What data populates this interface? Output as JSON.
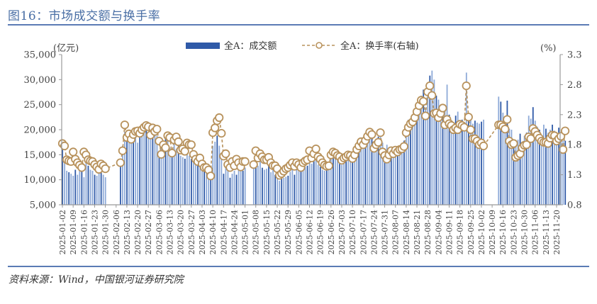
{
  "header": {
    "title": "图16：市场成交额与换手率"
  },
  "footer": {
    "source": "资料来源：Wind，中国银河证券研究院"
  },
  "colors": {
    "bar_dark": "#2f5aa8",
    "bar_light": "#8eaad8",
    "line": "#b8925c",
    "title": "#4a6fa5",
    "rule": "#5b7bb5",
    "axis": "#999999"
  },
  "chart_data": {
    "type": "bar+line",
    "title": "市场成交额与换手率",
    "left_axis": {
      "unit_label": "(亿元)",
      "min": 5000,
      "max": 35000,
      "ticks": [
        "5,000",
        "10,000",
        "15,000",
        "20,000",
        "25,000",
        "30,000",
        "35,000"
      ]
    },
    "right_axis": {
      "unit_label": "(%)",
      "min": 0.8,
      "max": 3.3,
      "ticks": [
        "0.8",
        "1.3",
        "1.8",
        "2.3",
        "2.8",
        "3.3"
      ]
    },
    "legend": [
      {
        "name": "全A：成交额",
        "type": "bar"
      },
      {
        "name": "全A：换手率(右轴)",
        "type": "line-dashed-marker"
      }
    ],
    "x_tick_labels": [
      "2025-01-02",
      "2025-01-09",
      "2025-01-16",
      "2025-01-23",
      "2025-01-30",
      "2025-02-06",
      "2025-02-13",
      "2025-02-20",
      "2025-02-27",
      "2025-03-06",
      "2025-03-13",
      "2025-03-20",
      "2025-03-27",
      "2025-04-03",
      "2025-04-10",
      "2025-04-17",
      "2025-04-24",
      "2025-05-01",
      "2025-05-08",
      "2025-05-15",
      "2025-05-22",
      "2025-05-29",
      "2025-06-05",
      "2025-06-12",
      "2025-06-19",
      "2025-06-26",
      "2025-07-03",
      "2025-07-10",
      "2025-07-17",
      "2025-07-24",
      "2025-07-31",
      "2025-08-07",
      "2025-08-14",
      "2025-08-21",
      "2025-08-28",
      "2025-09-04",
      "2025-09-11",
      "2025-09-18",
      "2025-09-25",
      "2025-10-02",
      "2025-10-09",
      "2025-10-16",
      "2025-10-23",
      "2025-10-30",
      "2025-11-06",
      "2025-11-13",
      "2025-11-20"
    ],
    "series": [
      {
        "name": "全A：成交额",
        "unit": "亿元",
        "weekly_values": [
          [
            16500,
            14200,
            11800,
            11500,
            11200
          ],
          [
            10800,
            12000,
            11000,
            13500,
            11800
          ],
          [
            10500,
            13500,
            12800,
            12000,
            11800
          ],
          [
            11000,
            10800,
            13800,
            12200,
            11000
          ],
          [
            10500,
            null,
            null,
            null,
            null
          ],
          [
            null,
            null,
            12800,
            16800,
            19600
          ],
          [
            18500,
            17600,
            17500,
            19500,
            18800
          ],
          [
            17400,
            19800,
            20200,
            21000,
            21600
          ],
          [
            19200,
            18600,
            20500,
            19000,
            18800
          ],
          [
            15800,
            17000,
            16200,
            18600,
            18200
          ],
          [
            16400,
            15800,
            17400,
            16200,
            16800
          ],
          [
            14800,
            14500,
            14200,
            15200,
            14800
          ],
          [
            14200,
            13800,
            13200,
            13500,
            14800
          ],
          [
            12800,
            12200,
            11600,
            11800,
            12800
          ],
          [
            16800,
            17600,
            18800,
            16800,
            15200
          ],
          [
            11200,
            12600,
            11800,
            10400,
            11200
          ],
          [
            11800,
            11000,
            12000,
            12200,
            11800
          ],
          [
            12400,
            null,
            null,
            null,
            12600
          ],
          [
            14200,
            12800,
            13800,
            12400,
            12000
          ],
          [
            12200,
            12800,
            11500,
            12000,
            11000
          ],
          [
            10800,
            9800,
            10200,
            10400,
            10600
          ],
          [
            10800,
            11600,
            12000,
            11000,
            12200
          ],
          [
            12800,
            11800,
            12400,
            12600,
            12800
          ],
          [
            14600,
            13200,
            14000,
            15000,
            13000
          ],
          [
            12600,
            12000,
            11800,
            12400,
            12000
          ],
          [
            14600,
            16000,
            15800,
            14200,
            14800
          ],
          [
            13000,
            13600,
            14400,
            15800,
            15200
          ],
          [
            14000,
            15200,
            14800,
            15800,
            16400
          ],
          [
            16400,
            17600,
            18800,
            19800,
            19200
          ],
          [
            17200,
            18200,
            18600,
            19800,
            17400
          ],
          [
            16000,
            17000,
            15400,
            15600,
            16400
          ],
          [
            15600,
            16200,
            16800,
            17000,
            17800
          ],
          [
            21000,
            22000,
            20200,
            22600,
            21400
          ],
          [
            25200,
            24600,
            26800,
            28000,
            24400
          ],
          [
            28000,
            30800,
            31800,
            30000,
            26800
          ],
          [
            26000,
            22600,
            24800,
            24200,
            29000
          ],
          [
            23000,
            20800,
            19800,
            22800,
            23600
          ],
          [
            21800,
            22000,
            21000,
            31400,
            23200
          ],
          [
            22800,
            21200,
            21800,
            21400,
            21200
          ],
          [
            21600,
            22000,
            null,
            null,
            null
          ],
          [
            null,
            null,
            null,
            26600,
            25600
          ],
          [
            23400,
            22000,
            25800,
            20200,
            20000
          ],
          [
            17000,
            17600,
            18000,
            19200,
            17000
          ],
          [
            18800,
            19400,
            22800,
            22200,
            24500
          ],
          [
            21800,
            20600,
            20000,
            18800,
            21000
          ],
          [
            20200,
            19400,
            20000,
            21000,
            19800
          ],
          [
            18600,
            20400,
            19400,
            17800,
            17800
          ]
        ]
      },
      {
        "name": "全A：换手率(右轴)",
        "unit": "%",
        "weekly_values": [
          [
            1.82,
            1.78,
            1.55,
            1.53,
            1.52
          ],
          [
            1.68,
            1.56,
            1.5,
            1.46,
            1.42
          ],
          [
            1.68,
            1.63,
            1.55,
            1.53,
            1.52
          ],
          [
            1.47,
            1.43,
            1.39,
            1.48,
            1.45
          ],
          [
            1.4,
            null,
            null,
            null,
            null
          ],
          [
            null,
            null,
            1.5,
            1.7,
            2.13
          ],
          [
            1.92,
            1.98,
            1.89,
            1.97,
            2.02
          ],
          [
            2.03,
            1.99,
            2.05,
            2.09,
            2.12
          ],
          [
            2.1,
            1.96,
            2.08,
            2.02,
            2.06
          ],
          [
            1.86,
            1.64,
            1.8,
            1.75,
            1.95
          ],
          [
            1.92,
            1.66,
            1.88,
            1.93,
            1.85
          ],
          [
            1.71,
            1.73,
            1.69,
            1.83,
            1.8
          ],
          [
            1.8,
            1.64,
            1.56,
            1.52,
            1.58
          ],
          [
            1.48,
            1.42,
            1.42,
            1.38,
            1.28
          ],
          [
            2.0,
            2.08,
            2.2,
            2.25,
            1.99
          ],
          [
            1.61,
            1.65,
            1.47,
            1.42,
            1.52
          ],
          [
            1.45,
            1.56,
            1.5,
            1.43,
            1.52
          ],
          [
            1.52,
            null,
            null,
            null,
            1.47
          ],
          [
            1.7,
            1.58,
            1.65,
            1.6,
            1.55
          ],
          [
            1.55,
            1.59,
            1.5,
            1.45,
            1.45
          ],
          [
            1.4,
            1.29,
            1.32,
            1.36,
            1.4
          ],
          [
            1.42,
            1.46,
            1.5,
            1.44,
            1.5
          ],
          [
            1.47,
            1.42,
            1.5,
            1.53,
            1.55
          ],
          [
            1.7,
            1.58,
            1.65,
            1.73,
            1.6
          ],
          [
            1.56,
            1.5,
            1.46,
            1.44,
            1.45
          ],
          [
            1.63,
            1.68,
            1.66,
            1.62,
            1.6
          ],
          [
            1.54,
            1.58,
            1.6,
            1.63,
            1.62
          ],
          [
            1.57,
            1.63,
            1.72,
            1.78,
            1.85
          ],
          [
            1.8,
            1.87,
            1.94,
            2.01,
            1.97
          ],
          [
            1.74,
            1.8,
            1.84,
            2.0,
            1.68
          ],
          [
            1.62,
            1.56,
            1.63,
            1.7,
            1.65
          ],
          [
            1.71,
            1.68,
            1.72,
            1.73,
            1.77
          ],
          [
            2.0,
            2.09,
            2.15,
            2.18,
            2.25
          ],
          [
            2.35,
            2.45,
            2.54,
            2.52,
            2.28
          ],
          [
            2.68,
            2.78,
            2.62,
            2.32,
            2.33
          ],
          [
            2.25,
            2.32,
            2.41,
            2.13,
            2.22
          ],
          [
            2.15,
            2.12,
            2.05,
            2.08,
            2.05
          ],
          [
            2.14,
            2.12,
            2.09,
            2.78,
            2.26
          ],
          [
            2.05,
            1.9,
            1.9,
            1.86,
            1.8
          ],
          [
            1.83,
            1.78,
            null,
            null,
            null
          ],
          [
            null,
            null,
            null,
            2.13,
            2.13
          ],
          [
            2.1,
            2.06,
            2.22,
            1.86,
            1.8
          ],
          [
            1.82,
            1.59,
            1.62,
            1.65,
            1.75
          ],
          [
            1.79,
            1.8,
            1.93,
            1.9,
            2.07
          ],
          [
            2.02,
            1.96,
            1.91,
            1.86,
            1.84
          ],
          [
            1.84,
            1.82,
            1.91,
            1.96,
            1.95
          ],
          [
            1.86,
            1.9,
            1.94,
            1.72,
            2.03
          ]
        ]
      }
    ],
    "xlabel": "",
    "ylabel_left": "亿元",
    "ylabel_right": "%",
    "grid": false,
    "legend_position": "top"
  }
}
